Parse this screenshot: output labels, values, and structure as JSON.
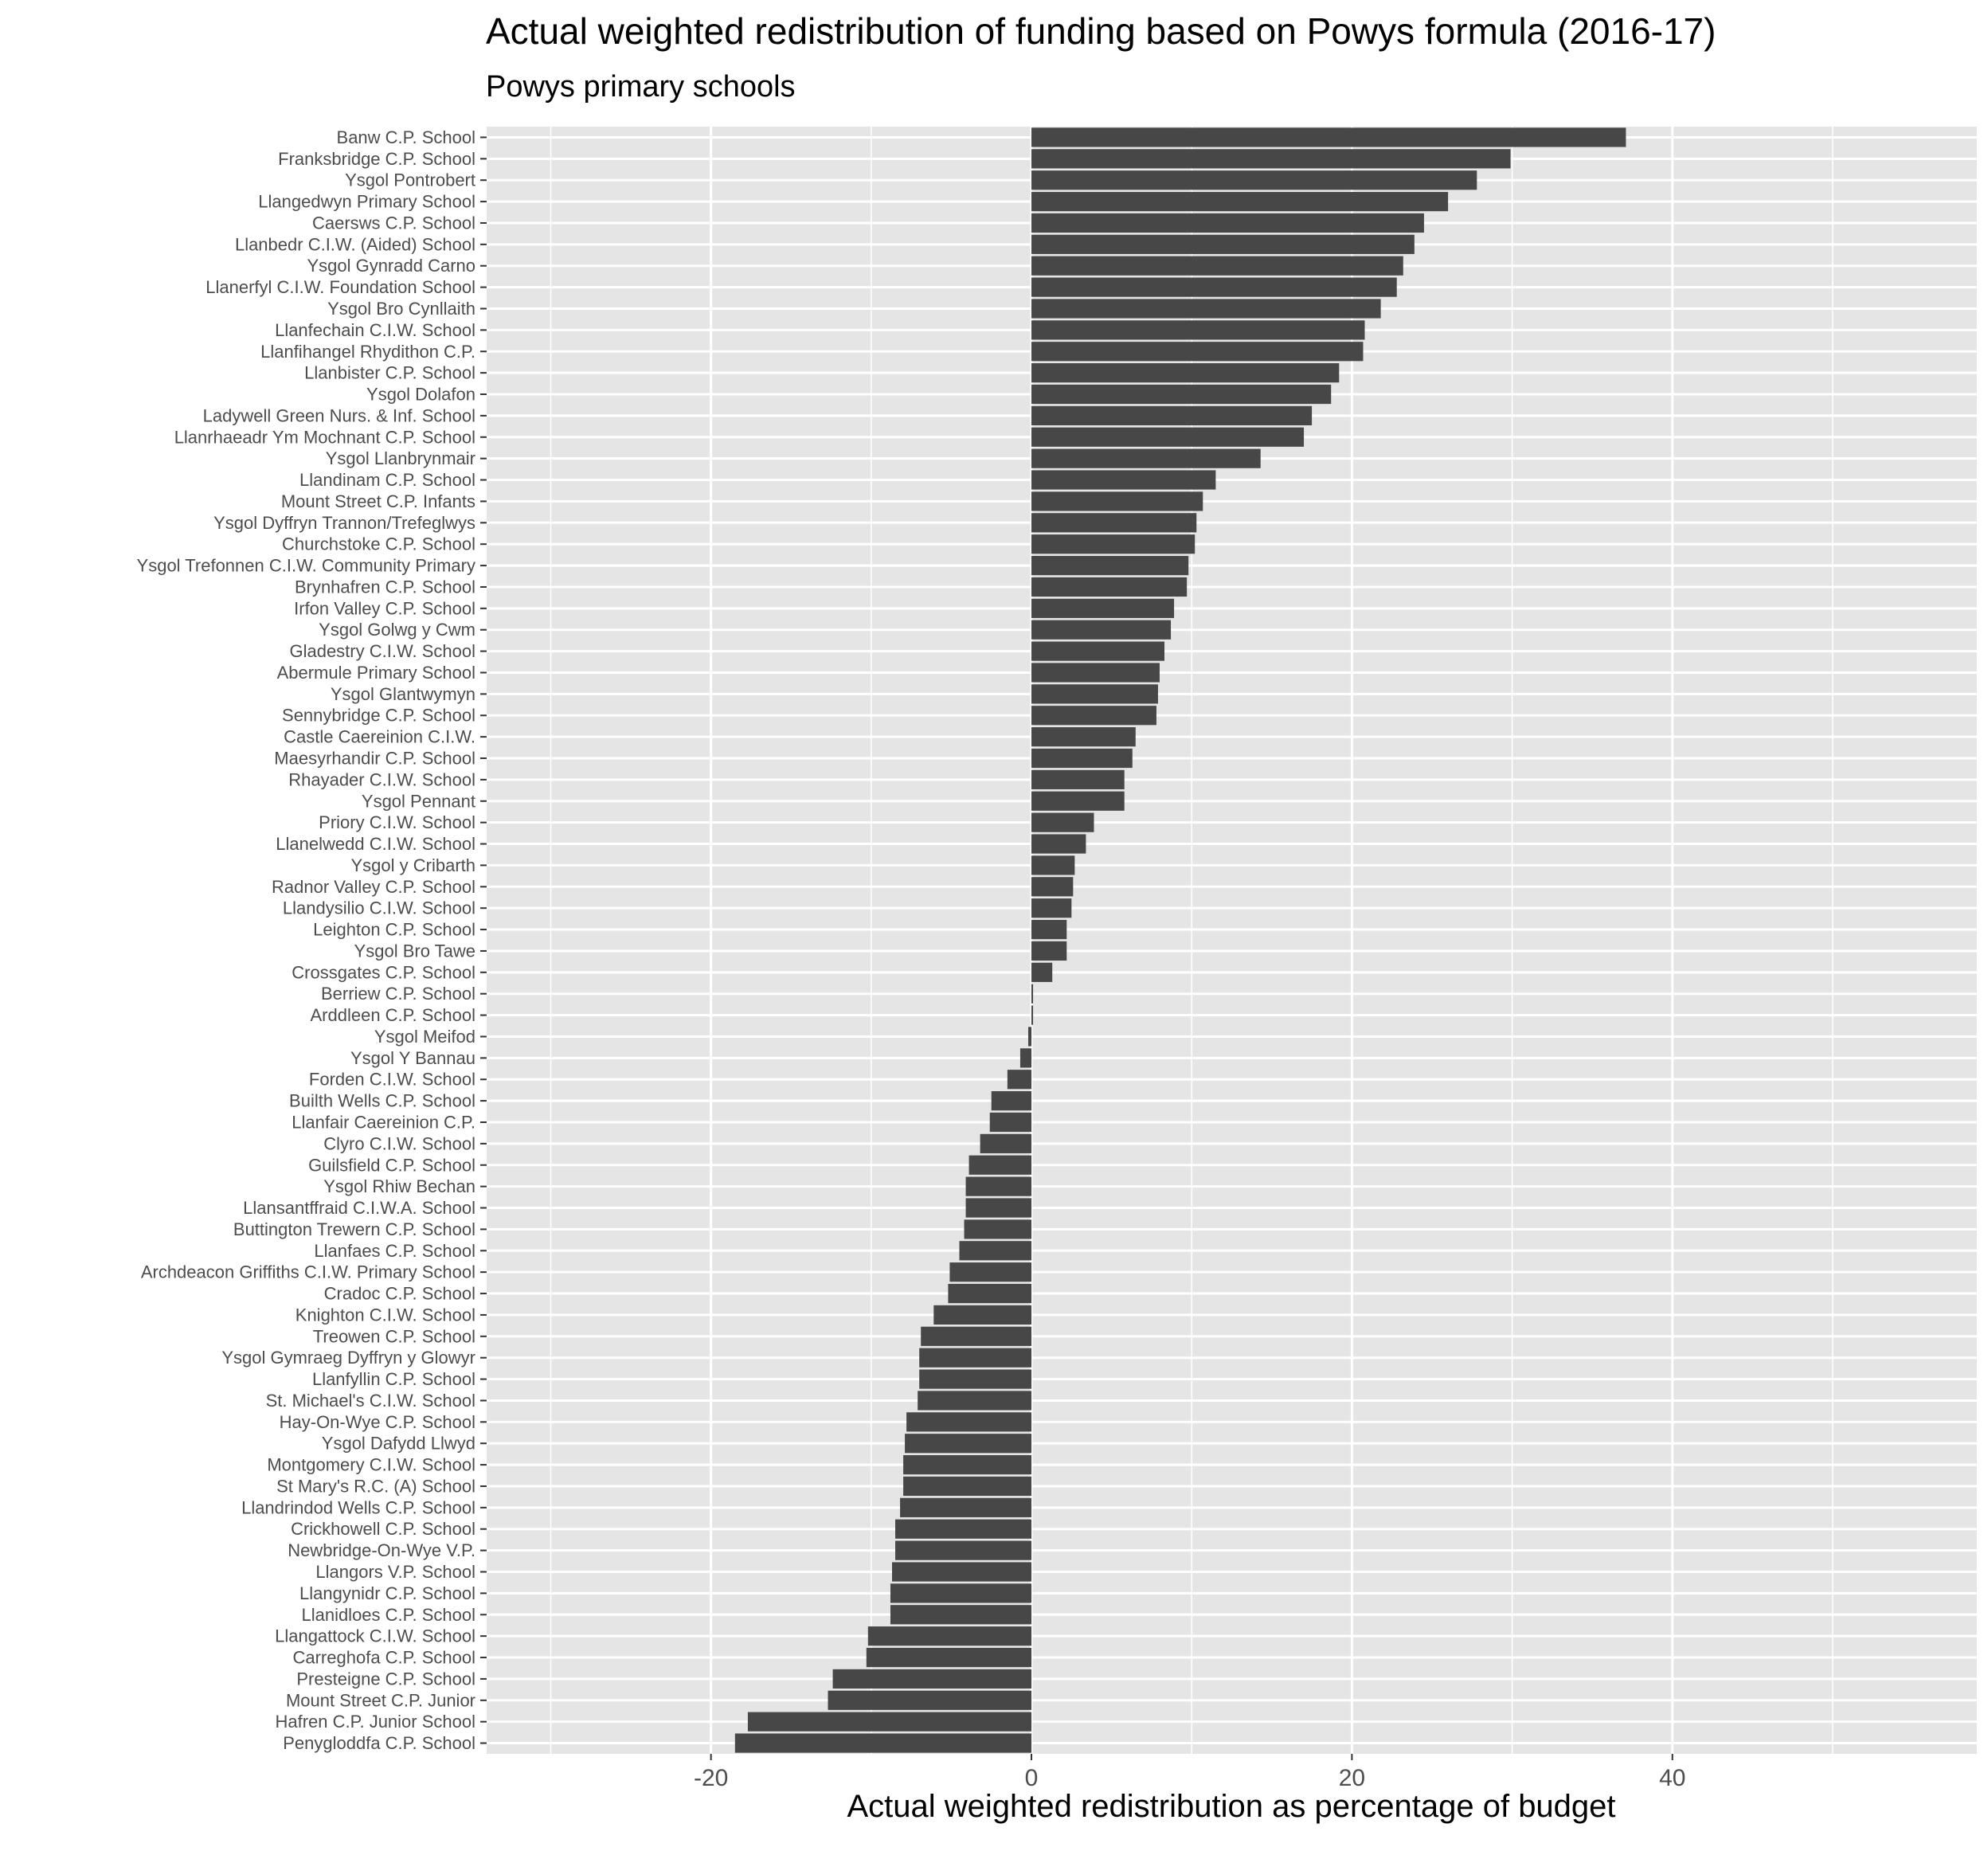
{
  "chart_data": {
    "type": "bar",
    "orientation": "horizontal",
    "title": "Actual weighted redistribution of funding based on Powys formula (2016-17)",
    "subtitle": "Powys primary schools",
    "xlabel": "Actual weighted redistribution as percentage of budget",
    "ylabel": "",
    "xlim": [
      -34,
      59
    ],
    "xticks": [
      -20,
      0,
      20,
      40
    ],
    "grid": true,
    "legend": "none",
    "colors": {
      "bar": "#474747",
      "panel": "#e5e5e5",
      "grid": "#ffffff"
    },
    "categories": [
      "Banw C.P. School",
      "Franksbridge C.P. School",
      "Ysgol Pontrobert",
      "Llangedwyn Primary School",
      "Caersws C.P. School",
      "Llanbedr C.I.W. (Aided) School",
      "Ysgol Gynradd Carno",
      "Llanerfyl C.I.W. Foundation School",
      "Ysgol Bro Cynllaith",
      "Llanfechain C.I.W. School",
      "Llanfihangel Rhydithon C.P.",
      "Llanbister C.P. School",
      "Ysgol Dolafon",
      "Ladywell Green Nurs. & Inf. School",
      "Llanrhaeadr Ym Mochnant C.P. School",
      "Ysgol Llanbrynmair",
      "Llandinam C.P. School",
      "Mount Street C.P. Infants",
      "Ysgol Dyffryn Trannon/Trefeglwys",
      "Churchstoke C.P. School",
      "Ysgol Trefonnen C.I.W. Community Primary",
      "Brynhafren C.P. School",
      "Irfon Valley C.P. School",
      "Ysgol Golwg y Cwm",
      "Gladestry C.I.W. School",
      "Abermule Primary School",
      "Ysgol Glantwymyn",
      "Sennybridge C.P. School",
      "Castle Caereinion C.I.W.",
      "Maesyrhandir C.P. School",
      "Rhayader C.I.W. School",
      "Ysgol Pennant",
      "Priory C.I.W. School",
      "Llanelwedd C.I.W. School",
      "Ysgol y Cribarth",
      "Radnor Valley C.P. School",
      "Llandysilio C.I.W. School",
      "Leighton C.P. School",
      "Ysgol Bro Tawe",
      "Crossgates C.P. School",
      "Berriew C.P. School",
      "Arddleen C.P. School",
      "Ysgol Meifod",
      "Ysgol Y Bannau",
      "Forden C.I.W. School",
      "Builth Wells C.P. School",
      "Llanfair Caereinion C.P.",
      "Clyro C.I.W. School",
      "Guilsfield C.P. School",
      "Ysgol Rhiw Bechan",
      "Llansantffraid C.I.W.A. School",
      "Buttington Trewern C.P. School",
      "Llanfaes C.P. School",
      "Archdeacon Griffiths C.I.W. Primary School",
      "Cradoc C.P. School",
      "Knighton C.I.W. School",
      "Treowen C.P. School",
      "Ysgol Gymraeg Dyffryn y Glowyr",
      "Llanfyllin C.P. School",
      "St. Michael's C.I.W. School",
      "Hay-On-Wye C.P. School",
      "Ysgol Dafydd Llwyd",
      "Montgomery C.I.W. School",
      "St Mary's R.C. (A) School",
      "Llandrindod Wells C.P. School",
      "Crickhowell C.P. School",
      "Newbridge-On-Wye V.P.",
      "Llangors V.P. School",
      "Llangynidr C.P. School",
      "Llanidloes C.P. School",
      "Llangattock C.I.W. School",
      "Carreghofa C.P. School",
      "Presteigne C.P. School",
      "Mount Street C.P. Junior",
      "Hafren C.P. Junior School",
      "Penygloddfa C.P. School"
    ],
    "values": [
      37.1,
      29.9,
      27.8,
      26.0,
      24.5,
      23.9,
      23.2,
      22.8,
      21.8,
      20.8,
      20.7,
      19.2,
      18.7,
      17.5,
      17.0,
      14.3,
      11.5,
      10.7,
      10.3,
      10.2,
      9.8,
      9.7,
      8.9,
      8.7,
      8.3,
      8.0,
      7.9,
      7.8,
      6.5,
      6.3,
      5.8,
      5.8,
      3.9,
      3.4,
      2.7,
      2.6,
      2.5,
      2.2,
      2.2,
      1.3,
      0.1,
      0.1,
      -0.2,
      -0.7,
      -1.5,
      -2.5,
      -2.6,
      -3.2,
      -3.9,
      -4.1,
      -4.1,
      -4.2,
      -4.5,
      -5.1,
      -5.2,
      -6.1,
      -6.9,
      -7.0,
      -7.0,
      -7.1,
      -7.8,
      -7.9,
      -8.0,
      -8.0,
      -8.2,
      -8.5,
      -8.5,
      -8.7,
      -8.8,
      -8.8,
      -10.2,
      -10.3,
      -12.4,
      -12.7,
      -17.7,
      -18.5
    ]
  }
}
